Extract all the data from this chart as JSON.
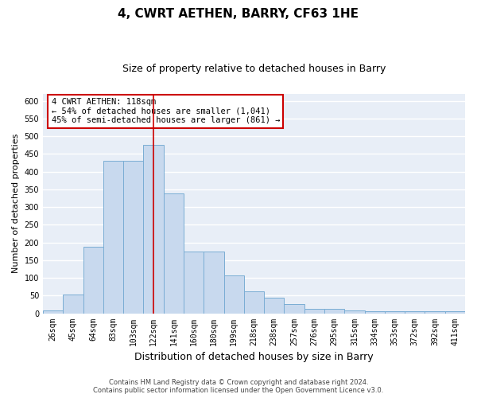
{
  "title": "4, CWRT AETHEN, BARRY, CF63 1HE",
  "subtitle": "Size of property relative to detached houses in Barry",
  "xlabel": "Distribution of detached houses by size in Barry",
  "ylabel": "Number of detached properties",
  "categories": [
    "26sqm",
    "45sqm",
    "64sqm",
    "83sqm",
    "103sqm",
    "122sqm",
    "141sqm",
    "160sqm",
    "180sqm",
    "199sqm",
    "218sqm",
    "238sqm",
    "257sqm",
    "276sqm",
    "295sqm",
    "315sqm",
    "334sqm",
    "353sqm",
    "372sqm",
    "392sqm",
    "411sqm"
  ],
  "values": [
    7,
    52,
    188,
    430,
    430,
    476,
    338,
    174,
    174,
    107,
    62,
    45,
    25,
    12,
    12,
    8,
    5,
    5,
    5,
    5,
    5
  ],
  "bar_color": "#c8d9ee",
  "bar_edge_color": "#7aadd4",
  "bar_edge_width": 0.7,
  "vline_x_index": 5,
  "vline_color": "#cc0000",
  "annotation_text": "4 CWRT AETHEN: 118sqm\n← 54% of detached houses are smaller (1,041)\n45% of semi-detached houses are larger (861) →",
  "annotation_box_color": "#ffffff",
  "annotation_box_edge_color": "#cc0000",
  "ylim": [
    0,
    620
  ],
  "yticks": [
    0,
    50,
    100,
    150,
    200,
    250,
    300,
    350,
    400,
    450,
    500,
    550,
    600
  ],
  "plot_bg_color": "#e8eef7",
  "grid_color": "#ffffff",
  "footer_text": "Contains HM Land Registry data © Crown copyright and database right 2024.\nContains public sector information licensed under the Open Government Licence v3.0.",
  "title_fontsize": 11,
  "subtitle_fontsize": 9,
  "xlabel_fontsize": 9,
  "ylabel_fontsize": 8,
  "tick_fontsize": 7,
  "annotation_fontsize": 7.5,
  "footer_fontsize": 6
}
